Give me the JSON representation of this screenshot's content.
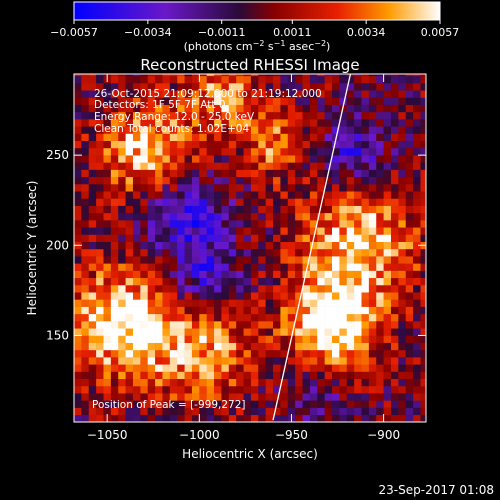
{
  "chart_data": {
    "type": "heatmap",
    "title": "Reconstructed RHESSI Image",
    "xlabel": "Heliocentric X (arcsec)",
    "ylabel": "Heliocentric Y (arcsec)",
    "xlim": [
      -1068,
      -877
    ],
    "ylim": [
      102,
      295
    ],
    "x_ticks": [
      -1050,
      -1000,
      -950,
      -900
    ],
    "x_tick_labels": [
      "−1050",
      "−1000",
      "−950",
      "−900"
    ],
    "y_ticks": [
      150,
      200,
      250
    ],
    "y_tick_labels": [
      "150",
      "200",
      "250"
    ],
    "colorbar": {
      "min": -0.0057,
      "max": 0.0057,
      "ticks": [
        -0.0057,
        -0.0034,
        -0.0011,
        0.0011,
        0.0034,
        0.0057
      ],
      "tick_labels": [
        "−0.0057",
        "−0.0034",
        "−0.0011",
        "0.0011",
        "0.0034",
        "0.0057"
      ],
      "label_main": "(photons cm",
      "label_sup1": "−2",
      "label_mid1": " s",
      "label_sup2": "−1",
      "label_mid2": " asec",
      "label_sup3": "−2",
      "label_end": ")",
      "colors": [
        "#0000ff",
        "#6a18c8",
        "#2a0a3a",
        "#8a0000",
        "#e82000",
        "#ff9a00",
        "#ffffff"
      ]
    },
    "annotations": {
      "line1": "26-Oct-2015 21:09:12.000 to 21:19:12.000",
      "line2": "Detectors: 1F 5F 7F  Att 0",
      "line3": "Energy Range: 12.0 - 25.0 keV",
      "line4": "Clean     Total counts: 1.02E+04"
    },
    "peak_text": "Position of Peak = [-999,272]",
    "limb_line": {
      "x_start": -960,
      "y_start": 103,
      "x_end": -918,
      "y_end": 295
    },
    "grid": false,
    "legend": "none"
  },
  "footer": {
    "timestamp": "23-Sep-2017 01:08"
  }
}
